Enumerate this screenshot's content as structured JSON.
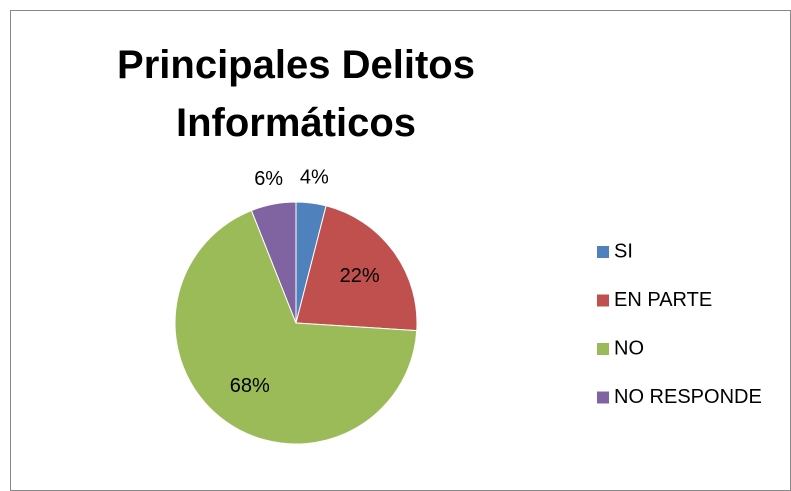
{
  "chart_data": {
    "type": "pie",
    "title": "Principales Delitos Informáticos",
    "categories": [
      "SI",
      "EN PARTE",
      "NO",
      "NO RESPONDE"
    ],
    "values": [
      4,
      22,
      68,
      6
    ],
    "value_labels": [
      "4%",
      "22%",
      "68%",
      "6%"
    ],
    "colors": [
      "#4f81bd",
      "#c0504d",
      "#9bbb59",
      "#8064a2"
    ],
    "legend": "right"
  }
}
